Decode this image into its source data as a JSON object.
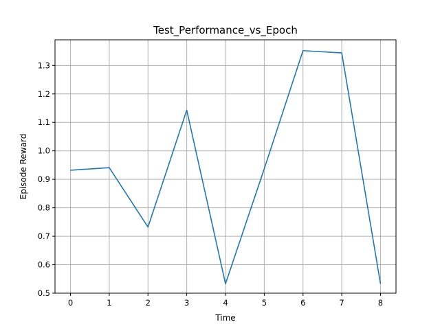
{
  "chart_data": {
    "type": "line",
    "title": "Test_Performance_vs_Epoch",
    "xlabel": "Time",
    "ylabel": "Episode Reward",
    "x": [
      0,
      1,
      2,
      3,
      4,
      5,
      6,
      7,
      8
    ],
    "series": [
      {
        "values": [
          0.932,
          0.941,
          0.732,
          1.143,
          0.533,
          0.937,
          1.352,
          1.344,
          0.533
        ],
        "color": "#1f77b4"
      }
    ],
    "xlim": [
      -0.4,
      8.4
    ],
    "ylim": [
      0.5,
      1.39
    ],
    "xticks": [
      0,
      1,
      2,
      3,
      4,
      5,
      6,
      7,
      8
    ],
    "yticks": [
      0.5,
      0.6,
      0.7,
      0.8,
      0.9,
      1.0,
      1.1,
      1.2,
      1.3
    ],
    "ytick_labels": [
      "0.5",
      "0.6",
      "0.7",
      "0.8",
      "0.9",
      "1.0",
      "1.1",
      "1.2",
      "1.3"
    ],
    "grid": true,
    "legend": "none"
  }
}
